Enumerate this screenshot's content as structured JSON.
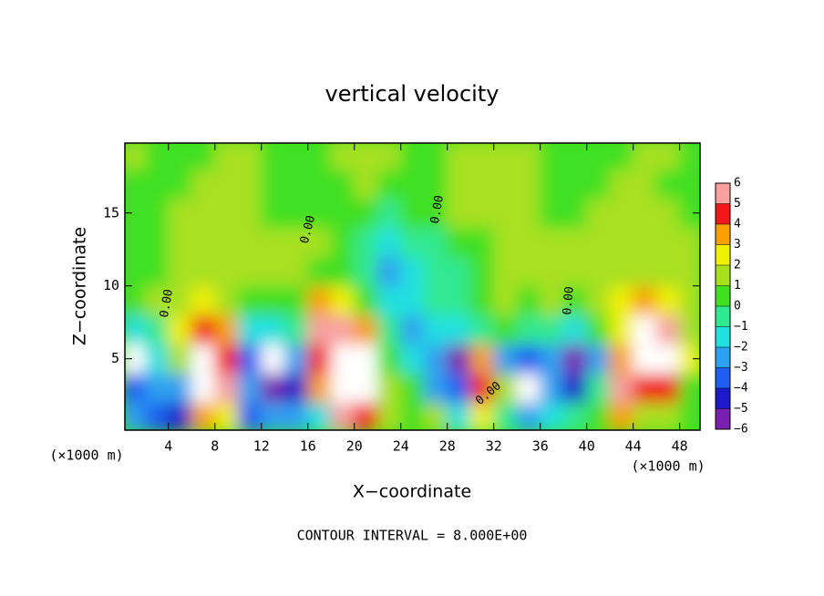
{
  "chart_data": {
    "type": "heatmap",
    "title": "vertical velocity",
    "x_label": "X−coordinate",
    "y_label": "Z−coordinate",
    "x_unit": "(×1000 m)",
    "footer": "CONTOUR INTERVAL = 8.000E+00",
    "contour_label": "0.00",
    "xlim": [
      0.25,
      49.75
    ],
    "ylim": [
      0.1,
      19.8
    ],
    "xticks": [
      4,
      8,
      12,
      16,
      20,
      24,
      28,
      32,
      36,
      40,
      44,
      48
    ],
    "yticks": [
      5,
      10,
      15
    ],
    "x": [
      1,
      3,
      5,
      7,
      9,
      11,
      13,
      15,
      17,
      19,
      21,
      23,
      25,
      27,
      29,
      31,
      33,
      35,
      37,
      39,
      41,
      43,
      45,
      47,
      49
    ],
    "z": [
      1,
      3,
      5,
      7,
      9,
      11,
      13,
      15,
      17,
      19
    ],
    "values": [
      [
        -3,
        -4,
        -5,
        3,
        2,
        -4,
        -3,
        -3,
        -2,
        5,
        4,
        1,
        0,
        1,
        -2,
        2,
        -1,
        -3,
        -2,
        -1,
        0,
        3,
        1,
        1,
        0
      ],
      [
        -4,
        -3,
        -3,
        8,
        5,
        -3,
        -6,
        -5,
        3,
        8,
        8,
        1,
        0,
        -3,
        -4,
        4,
        1,
        -7,
        -3,
        -5,
        -1,
        6,
        4,
        4,
        0
      ],
      [
        -7,
        -2,
        1,
        7,
        4,
        -4,
        -7,
        -3,
        4,
        8,
        7,
        0,
        -2,
        -3,
        -6,
        3,
        -3,
        -4,
        -3,
        -6,
        -3,
        3,
        8,
        7,
        2
      ],
      [
        -2,
        -1,
        2,
        4,
        3,
        -2,
        -2,
        -1,
        5,
        5,
        3,
        -1,
        -3,
        -2,
        -2,
        -1,
        0,
        -1,
        -1,
        -2,
        0,
        2,
        7,
        5,
        1
      ],
      [
        0,
        1,
        1,
        2,
        1,
        0,
        0,
        0,
        3,
        2,
        0,
        -2,
        -2,
        -1,
        -1,
        0,
        1,
        0,
        1,
        0,
        1,
        2,
        3,
        2,
        1
      ],
      [
        0,
        0,
        1,
        1,
        1,
        1,
        1,
        1,
        0,
        0,
        -1,
        -3,
        -2,
        -1,
        -1,
        0,
        1,
        1,
        1,
        1,
        1,
        1,
        1,
        1,
        1
      ],
      [
        0,
        0,
        1,
        1,
        1,
        1,
        1,
        1,
        1,
        0,
        -1,
        -2,
        -1,
        -1,
        0,
        0,
        1,
        1,
        1,
        1,
        1,
        1,
        1,
        1,
        1
      ],
      [
        0,
        0,
        1,
        1,
        1,
        1,
        0,
        0,
        0,
        0,
        0,
        -1,
        0,
        0,
        1,
        1,
        1,
        1,
        0,
        0,
        1,
        1,
        1,
        1,
        0
      ],
      [
        0,
        0,
        0,
        1,
        1,
        1,
        0,
        0,
        0,
        0,
        1,
        0,
        0,
        0,
        1,
        1,
        1,
        1,
        0,
        0,
        0,
        1,
        1,
        0,
        0
      ],
      [
        1,
        0,
        0,
        0,
        1,
        1,
        0,
        0,
        0,
        1,
        1,
        1,
        0,
        0,
        1,
        1,
        1,
        1,
        0,
        0,
        0,
        0,
        1,
        1,
        0
      ]
    ],
    "colorbar_ticks": [
      {
        "value": -6,
        "label": "−6"
      },
      {
        "value": -5,
        "label": "−5"
      },
      {
        "value": -4,
        "label": "−4"
      },
      {
        "value": -3,
        "label": "−3"
      },
      {
        "value": -2,
        "label": "−2"
      },
      {
        "value": -1,
        "label": "−1"
      },
      0,
      1,
      2,
      3,
      4,
      5,
      6
    ],
    "colorbar_colors": [
      "#7a1fb0",
      "#1a1ac8",
      "#1e5ef0",
      "#2ea0f0",
      "#20e0e0",
      "#30e890",
      "#40e020",
      "#a8e020",
      "#f0f000",
      "#f8a000",
      "#f01818",
      "#f8a0a0"
    ]
  }
}
